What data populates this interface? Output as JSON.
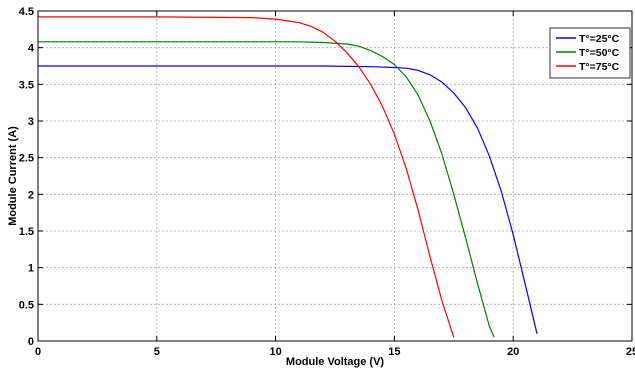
{
  "chart_data": {
    "type": "line",
    "title": "",
    "xlabel": "Module Voltage (V)",
    "ylabel": "Module Current (A)",
    "xlim": [
      0,
      25
    ],
    "ylim": [
      0,
      4.5
    ],
    "xticks": [
      0,
      5,
      10,
      15,
      20,
      25
    ],
    "xtick_labels": [
      "0",
      "5",
      "10",
      "15",
      "20",
      "25"
    ],
    "yticks": [
      0,
      0.5,
      1,
      1.5,
      2,
      2.5,
      3,
      3.5,
      4,
      4.5
    ],
    "ytick_labels": [
      "0",
      "0.5",
      "1",
      "1.5",
      "2",
      "2.5",
      "3",
      "3.5",
      "4",
      "4.5"
    ],
    "grid": true,
    "legend_position": "top-right",
    "series": [
      {
        "name": "T°=25°C",
        "color": "#0000ff",
        "x": [
          0,
          5,
          10,
          12,
          14,
          15,
          15.5,
          16,
          16.5,
          17,
          17.5,
          18,
          18.5,
          19,
          19.5,
          20,
          20.5,
          21
        ],
        "y": [
          3.75,
          3.75,
          3.75,
          3.75,
          3.74,
          3.73,
          3.72,
          3.69,
          3.63,
          3.53,
          3.38,
          3.18,
          2.9,
          2.52,
          2.04,
          1.45,
          0.78,
          0.1
        ]
      },
      {
        "name": "T°=50°C",
        "color": "#008000",
        "x": [
          0,
          5,
          10,
          11,
          12,
          13,
          13.5,
          14,
          14.5,
          15,
          15.5,
          16,
          16.5,
          17,
          17.5,
          18,
          18.5,
          19,
          19.2
        ],
        "y": [
          4.08,
          4.08,
          4.08,
          4.08,
          4.07,
          4.05,
          4.02,
          3.96,
          3.88,
          3.77,
          3.6,
          3.35,
          3.0,
          2.55,
          2.0,
          1.4,
          0.78,
          0.2,
          0.05
        ]
      },
      {
        "name": "T°=75°C",
        "color": "#ff0000",
        "x": [
          0,
          5,
          9,
          10,
          11,
          11.5,
          12,
          12.5,
          13,
          13.5,
          14,
          14.5,
          15,
          15.5,
          16,
          16.5,
          17,
          17.5
        ],
        "y": [
          4.42,
          4.42,
          4.41,
          4.39,
          4.34,
          4.29,
          4.21,
          4.09,
          3.93,
          3.74,
          3.5,
          3.2,
          2.82,
          2.35,
          1.78,
          1.15,
          0.55,
          0.05
        ]
      }
    ]
  }
}
